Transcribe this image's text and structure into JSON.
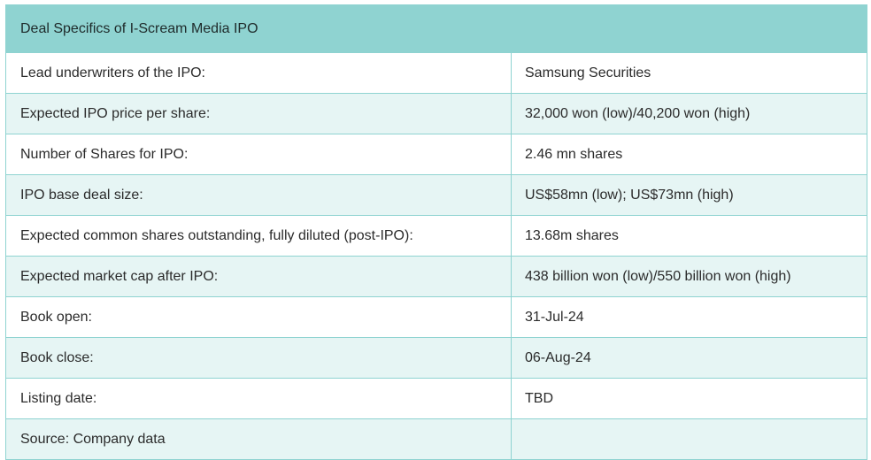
{
  "table": {
    "title": "Deal Specifics of I-Scream Media IPO",
    "rows": [
      {
        "label": "Lead underwriters of the IPO:",
        "value": "Samsung Securities"
      },
      {
        "label": "Expected IPO price per share:",
        "value": "32,000 won (low)/40,200 won (high)"
      },
      {
        "label": "Number of Shares for IPO:",
        "value": "2.46 mn shares"
      },
      {
        "label": "IPO base deal size:",
        "value": "US$58mn (low); US$73mn (high)"
      },
      {
        "label": "Expected common shares outstanding, fully diluted (post-IPO):",
        "value": "13.68m shares"
      },
      {
        "label": "Expected market cap after IPO:",
        "value": "438 billion won (low)/550 billion won (high)"
      },
      {
        "label": "Book open:",
        "value": "31-Jul-24"
      },
      {
        "label": "Book close:",
        "value": "06-Aug-24"
      },
      {
        "label": "Listing date:",
        "value": "TBD"
      },
      {
        "label": "Source: Company data",
        "value": ""
      }
    ]
  },
  "colors": {
    "header_bg": "#8fd3d1",
    "stripe_bg": "#e6f5f4",
    "border": "#8fd3d1"
  }
}
